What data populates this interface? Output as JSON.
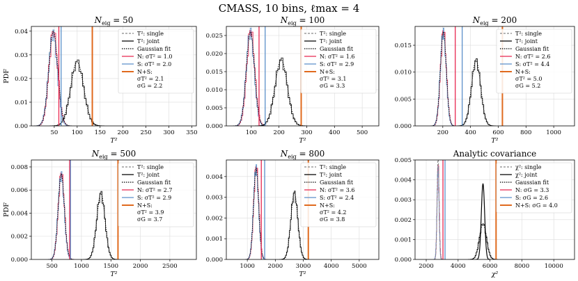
{
  "suptitle": "CMASS, 10 bins, ℓmax = 4",
  "colors": {
    "single": "#888888",
    "joint": "#000000",
    "noise": "#e8264f",
    "signal": "#5b8fc9",
    "combined": "#e06a1e",
    "grid": "#dcdcdc"
  },
  "chart_data": [
    {
      "type": "line",
      "title": "N_eig = 50",
      "title_parts": {
        "main": "N",
        "sub": "eig",
        "rest": " = 50"
      },
      "xlabel": "T²",
      "ylabel": "PDF",
      "xlim": [
        0,
        360
      ],
      "ylim": [
        0,
        0.042
      ],
      "xticks": [
        50,
        100,
        150,
        200,
        250,
        300,
        350
      ],
      "yticks": [
        0.0,
        0.01,
        0.02,
        0.03,
        0.04
      ],
      "ytick_labels": [
        "0.00",
        "0.01",
        "0.02",
        "0.03",
        "0.04"
      ],
      "series": [
        {
          "name": "single (N)",
          "kind": "hist",
          "color": "noise",
          "mean": 48,
          "sd": 9.5,
          "peak": 0.04
        },
        {
          "name": "single (S)",
          "kind": "hist",
          "color": "signal",
          "mean": 47,
          "sd": 9.5,
          "peak": 0.039
        },
        {
          "name": "joint",
          "kind": "hist",
          "color": "joint",
          "mean": 100,
          "sd": 14,
          "peak": 0.027
        },
        {
          "name": "Gaussian fit (single)",
          "kind": "fit",
          "mean": 48,
          "sd": 9.8,
          "peak": 0.04
        },
        {
          "name": "Gaussian fit (joint)",
          "kind": "fit",
          "mean": 100,
          "sd": 14.2,
          "peak": 0.027
        }
      ],
      "vlines": [
        {
          "name": "N",
          "x": 60,
          "color": "noise"
        },
        {
          "name": "S",
          "x": 65,
          "color": "signal"
        },
        {
          "name": "N+S",
          "x": 133,
          "color": "combined"
        }
      ],
      "legend": {
        "position": "right",
        "entries": [
          {
            "style": "dashed",
            "color": "single",
            "label": "T²: single"
          },
          {
            "style": "solid",
            "color": "joint",
            "label": "T²: joint"
          },
          {
            "style": "dotted",
            "color": "joint",
            "label": "Gaussian fit"
          },
          {
            "style": "solid",
            "color": "noise",
            "label": "N: σT² = 1.0"
          },
          {
            "style": "solid",
            "color": "signal",
            "label": "S: σT² = 2.0"
          },
          {
            "style": "thick",
            "color": "combined",
            "label": "N+S:",
            "lines": [
              "σT² = 2.1",
              "σG = 2.2"
            ]
          }
        ]
      }
    },
    {
      "type": "line",
      "title": "N_eig = 100",
      "title_parts": {
        "main": "N",
        "sub": "eig",
        "rest": " = 100"
      },
      "xlabel": "T²",
      "ylabel": "",
      "xlim": [
        10,
        560
      ],
      "ylim": [
        0,
        0.0275
      ],
      "xticks": [
        100,
        200,
        300,
        400,
        500
      ],
      "yticks": [
        0.0,
        0.005,
        0.01,
        0.015,
        0.02,
        0.025
      ],
      "ytick_labels": [
        "0.000",
        "0.005",
        "0.010",
        "0.015",
        "0.020",
        "0.025"
      ],
      "series": [
        {
          "name": "single (N)",
          "kind": "hist",
          "color": "noise",
          "mean": 98,
          "sd": 14.5,
          "peak": 0.0265
        },
        {
          "name": "single (S)",
          "kind": "hist",
          "color": "signal",
          "mean": 96,
          "sd": 14.5,
          "peak": 0.026
        },
        {
          "name": "joint",
          "kind": "hist",
          "color": "joint",
          "mean": 208,
          "sd": 22,
          "peak": 0.0182
        },
        {
          "name": "Gaussian fit (single)",
          "kind": "fit",
          "mean": 97,
          "sd": 14.8,
          "peak": 0.026
        },
        {
          "name": "Gaussian fit (joint)",
          "kind": "fit",
          "mean": 208,
          "sd": 22.4,
          "peak": 0.0182
        }
      ],
      "vlines": [
        {
          "name": "N",
          "x": 128,
          "color": "noise"
        },
        {
          "name": "S",
          "x": 150,
          "color": "signal"
        },
        {
          "name": "N+S",
          "x": 280,
          "color": "combined"
        }
      ],
      "legend": {
        "position": "right",
        "entries": [
          {
            "style": "dashed",
            "color": "single",
            "label": "T²: single"
          },
          {
            "style": "solid",
            "color": "joint",
            "label": "T²: joint"
          },
          {
            "style": "dotted",
            "color": "joint",
            "label": "Gaussian fit"
          },
          {
            "style": "solid",
            "color": "noise",
            "label": "N: σT² = 1.6"
          },
          {
            "style": "solid",
            "color": "signal",
            "label": "S: σT² = 2.9"
          },
          {
            "style": "thick",
            "color": "combined",
            "label": "N+S:",
            "lines": [
              "σT² = 3.1",
              "σG = 3.3"
            ]
          }
        ]
      }
    },
    {
      "type": "line",
      "title": "N_eig = 200",
      "title_parts": {
        "main": "N",
        "sub": "eig",
        "rest": " = 200"
      },
      "xlabel": "T²",
      "ylabel": "",
      "xlim": [
        0,
        1150
      ],
      "ylim": [
        0,
        0.0185
      ],
      "xticks": [
        200,
        400,
        600,
        800,
        1000
      ],
      "yticks": [
        0.0,
        0.005,
        0.01,
        0.015
      ],
      "ytick_labels": [
        "0.000",
        "0.005",
        "0.010",
        "0.015"
      ],
      "series": [
        {
          "name": "single (N)",
          "kind": "hist",
          "color": "noise",
          "mean": 205,
          "sd": 21,
          "peak": 0.0178
        },
        {
          "name": "single (S)",
          "kind": "hist",
          "color": "signal",
          "mean": 203,
          "sd": 21,
          "peak": 0.0175
        },
        {
          "name": "joint",
          "kind": "hist",
          "color": "joint",
          "mean": 440,
          "sd": 33,
          "peak": 0.0121
        },
        {
          "name": "Gaussian fit (single)",
          "kind": "fit",
          "mean": 204,
          "sd": 21.5,
          "peak": 0.0175
        },
        {
          "name": "Gaussian fit (joint)",
          "kind": "fit",
          "mean": 440,
          "sd": 33.5,
          "peak": 0.0121
        }
      ],
      "vlines": [
        {
          "name": "N",
          "x": 290,
          "color": "noise"
        },
        {
          "name": "S",
          "x": 340,
          "color": "signal"
        },
        {
          "name": "N+S",
          "x": 630,
          "color": "combined"
        }
      ],
      "legend": {
        "position": "right",
        "entries": [
          {
            "style": "dashed",
            "color": "single",
            "label": "T²: single"
          },
          {
            "style": "solid",
            "color": "joint",
            "label": "T²: joint"
          },
          {
            "style": "dotted",
            "color": "joint",
            "label": "Gaussian fit"
          },
          {
            "style": "solid",
            "color": "noise",
            "label": "N: σT² = 2.6"
          },
          {
            "style": "solid",
            "color": "signal",
            "label": "S: σT² = 4.4"
          },
          {
            "style": "thick",
            "color": "combined",
            "label": "N+S:",
            "lines": [
              "σT² = 5.0",
              "σG = 5.2"
            ]
          }
        ]
      }
    },
    {
      "type": "line",
      "title": "N_eig = 500",
      "title_parts": {
        "main": "N",
        "sub": "eig",
        "rest": " = 500"
      },
      "xlabel": "T²",
      "ylabel": "PDF",
      "xlim": [
        150,
        2950
      ],
      "ylim": [
        0,
        0.0086
      ],
      "xticks": [
        500,
        1000,
        1500,
        2000,
        2500
      ],
      "yticks": [
        0.0,
        0.002,
        0.004,
        0.006,
        0.008
      ],
      "ytick_labels": [
        "0.000",
        "0.002",
        "0.004",
        "0.006",
        "0.008"
      ],
      "series": [
        {
          "name": "single (N)",
          "kind": "hist",
          "color": "noise",
          "mean": 660,
          "sd": 52,
          "peak": 0.0075
        },
        {
          "name": "single (S)",
          "kind": "hist",
          "color": "signal",
          "mean": 655,
          "sd": 52,
          "peak": 0.0073
        },
        {
          "name": "joint",
          "kind": "hist",
          "color": "joint",
          "mean": 1330,
          "sd": 70,
          "peak": 0.0057
        },
        {
          "name": "Gaussian fit (single)",
          "kind": "fit",
          "mean": 658,
          "sd": 53,
          "peak": 0.0074
        },
        {
          "name": "Gaussian fit (joint)",
          "kind": "fit",
          "mean": 1330,
          "sd": 70.5,
          "peak": 0.0057
        }
      ],
      "vlines": [
        {
          "name": "N",
          "x": 800,
          "color": "noise"
        },
        {
          "name": "S",
          "x": 815,
          "color": "signal"
        },
        {
          "name": "N+S",
          "x": 1620,
          "color": "combined"
        }
      ],
      "legend": {
        "position": "right",
        "entries": [
          {
            "style": "dashed",
            "color": "single",
            "label": "T²: single"
          },
          {
            "style": "solid",
            "color": "joint",
            "label": "T²: joint"
          },
          {
            "style": "dotted",
            "color": "joint",
            "label": "Gaussian fit"
          },
          {
            "style": "solid",
            "color": "noise",
            "label": "N: σT² = 2.7"
          },
          {
            "style": "solid",
            "color": "signal",
            "label": "S: σT² = 2.9"
          },
          {
            "style": "thick",
            "color": "combined",
            "label": "N+S:",
            "lines": [
              "σT² = 3.9",
              "σG = 3.7"
            ]
          }
        ]
      }
    },
    {
      "type": "line",
      "title": "N_eig = 800",
      "title_parts": {
        "main": "N",
        "sub": "eig",
        "rest": " = 800"
      },
      "xlabel": "T²",
      "ylabel": "",
      "xlim": [
        250,
        5700
      ],
      "ylim": [
        0,
        0.0048
      ],
      "xticks": [
        1000,
        2000,
        3000,
        4000,
        5000
      ],
      "yticks": [
        0.0,
        0.001,
        0.002,
        0.003,
        0.004
      ],
      "ytick_labels": [
        "0.000",
        "0.001",
        "0.002",
        "0.003",
        "0.004"
      ],
      "series": [
        {
          "name": "single (N)",
          "kind": "hist",
          "color": "noise",
          "mean": 1320,
          "sd": 90,
          "peak": 0.0045
        },
        {
          "name": "single (S)",
          "kind": "hist",
          "color": "signal",
          "mean": 1310,
          "sd": 90,
          "peak": 0.0044
        },
        {
          "name": "joint",
          "kind": "hist",
          "color": "joint",
          "mean": 2680,
          "sd": 125,
          "peak": 0.0032
        },
        {
          "name": "Gaussian fit (single)",
          "kind": "fit",
          "mean": 1315,
          "sd": 91,
          "peak": 0.0044
        },
        {
          "name": "Gaussian fit (joint)",
          "kind": "fit",
          "mean": 2680,
          "sd": 126,
          "peak": 0.0032
        }
      ],
      "vlines": [
        {
          "name": "N",
          "x": 1500,
          "color": "noise"
        },
        {
          "name": "S",
          "x": 1620,
          "color": "signal"
        },
        {
          "name": "N+S",
          "x": 3180,
          "color": "combined"
        }
      ],
      "legend": {
        "position": "right",
        "entries": [
          {
            "style": "dashed",
            "color": "single",
            "label": "T²: single"
          },
          {
            "style": "solid",
            "color": "joint",
            "label": "T²: joint"
          },
          {
            "style": "dotted",
            "color": "joint",
            "label": "Gaussian fit"
          },
          {
            "style": "solid",
            "color": "noise",
            "label": "N: σT² = 3.6"
          },
          {
            "style": "solid",
            "color": "signal",
            "label": "S: σT² = 2.4"
          },
          {
            "style": "thick",
            "color": "combined",
            "label": "N+S:",
            "lines": [
              "σT² = 4.2",
              "σG = 3.8"
            ]
          }
        ]
      }
    },
    {
      "type": "line",
      "title": "Analytic covariance",
      "xlabel": "χ²",
      "ylabel": "",
      "xlim": [
        1300,
        11300
      ],
      "ylim": [
        0,
        0.005
      ],
      "xticks": [
        2000,
        4000,
        6000,
        8000,
        10000
      ],
      "yticks": [
        0.0,
        0.001,
        0.002,
        0.003,
        0.004,
        0.005
      ],
      "ytick_labels": [
        "0.000",
        "0.001",
        "0.002",
        "0.003",
        "0.004",
        "0.005"
      ],
      "series": [
        {
          "name": "single (N)",
          "kind": "hist",
          "color": "noise",
          "mean": 2750,
          "sd": 65,
          "peak": 0.0048
        },
        {
          "name": "single (S)",
          "kind": "hist",
          "color": "signal",
          "mean": 2740,
          "sd": 65,
          "peak": 0.0045
        },
        {
          "name": "single dashed",
          "kind": "fitdash",
          "color": "single",
          "mean": 2745,
          "sd": 60,
          "peak": 0.0052
        },
        {
          "name": "joint",
          "kind": "fitsolid",
          "color": "joint",
          "mean": 5560,
          "sd": 105,
          "peak": 0.0038
        },
        {
          "name": "joint hist",
          "kind": "hist",
          "color": "joint",
          "mean": 5560,
          "sd": 220,
          "peak": 0.0018
        },
        {
          "name": "Gaussian fit (joint)",
          "kind": "fit",
          "mean": 5560,
          "sd": 220,
          "peak": 0.0018
        }
      ],
      "vlines": [
        {
          "name": "N",
          "x": 3050,
          "color": "noise"
        },
        {
          "name": "S",
          "x": 3180,
          "color": "signal"
        },
        {
          "name": "N+S",
          "x": 6380,
          "color": "combined"
        }
      ],
      "legend": {
        "position": "right",
        "entries": [
          {
            "style": "dashed",
            "color": "single",
            "label": "χ²: single"
          },
          {
            "style": "solid",
            "color": "joint",
            "label": "χ²: joint"
          },
          {
            "style": "dotted",
            "color": "joint",
            "label": "Gaussian fit"
          },
          {
            "style": "solid",
            "color": "noise",
            "label": "N: σG = 3.3"
          },
          {
            "style": "solid",
            "color": "signal",
            "label": "S: σG = 2.6"
          },
          {
            "style": "thick",
            "color": "combined",
            "label": "N+S: σG = 4.0"
          }
        ]
      }
    }
  ]
}
